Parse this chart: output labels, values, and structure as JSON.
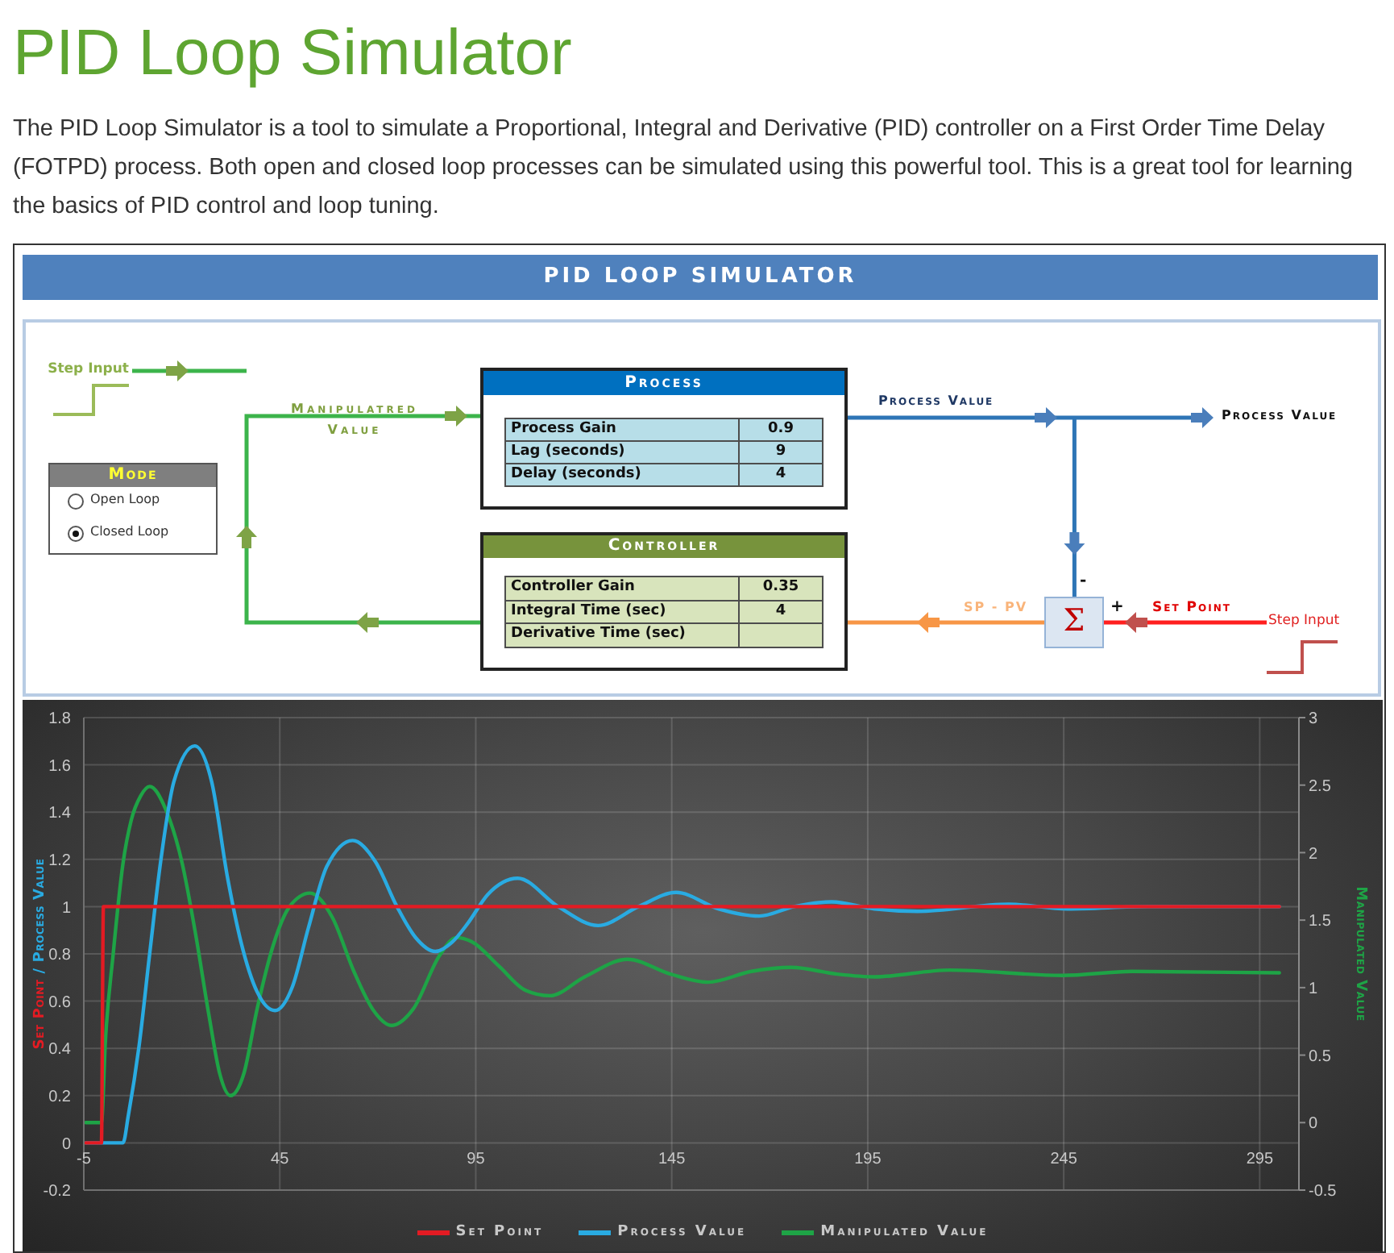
{
  "chart_data": [
    {
      "type": "other",
      "title": "PID Loop Simulator",
      "subtitle": "The PID Loop Simulator is a tool to simulate a Proportional, Integral and Derivative (PID) controller on a First Order Time Delay (FOTPD) process. Both open and closed loop processes can be simulated using this powerful tool. This is a great tool for learning the basics of PID control and loop tuning.",
      "annotations": [
        "PID LOOP SIMULATOR",
        "Step Input",
        "Manipulatred Value",
        "Mode",
        "Open Loop",
        "Closed Loop",
        "Process",
        "Process Gain",
        "0.9",
        "Lag (seconds)",
        "9",
        "Delay (seconds)",
        "4",
        "Controller",
        "Controller Gain",
        "0.35",
        "Integral Time (sec)",
        "4",
        "Derivative Time (sec)",
        "Process Value",
        "Process Value",
        "SP - PV",
        "Σ",
        "-",
        "+",
        "Set Point",
        "Step Input"
      ]
    },
    {
      "type": "line",
      "xlim": [
        -5,
        305
      ],
      "xticks": [
        -5,
        45,
        95,
        145,
        195,
        245,
        295
      ],
      "ylim": [
        -0.2,
        1.8
      ],
      "yticks": [
        -0.2,
        0,
        0.2,
        0.4,
        0.6,
        0.8,
        1,
        1.2,
        1.4,
        1.6,
        1.8
      ],
      "y2lim": [
        -0.5,
        3
      ],
      "y2ticks": [
        -0.5,
        0,
        0.5,
        1,
        1.5,
        2,
        2.5,
        3
      ],
      "ylabel": "Set Point / Process Value",
      "y2label": "Manipulated Value",
      "grid": true,
      "legend": "bottom",
      "series": [
        {
          "name": "Set Point",
          "color": "#e31b23",
          "x": [
            -4.5,
            -0.5,
            0,
            300
          ],
          "values": [
            0,
            0,
            1,
            1
          ]
        },
        {
          "name": "Process Value",
          "color": "#29abe2",
          "x": [
            -4.5,
            5,
            6.4,
            9.1,
            11.8,
            14.6,
            18,
            23.3,
            27.6,
            31.7,
            35.1,
            39.2,
            43.8,
            48.2,
            52.3,
            57,
            63.6,
            69.4,
            74.9,
            79.6,
            84.7,
            89,
            93,
            98,
            105.7,
            116,
            126.2,
            136.5,
            146.1,
            157,
            167.3,
            176.2,
            185.8,
            196.7,
            207.7,
            231,
            246,
            266.6,
            300
          ],
          "values": [
            0,
            0,
            0.12,
            0.41,
            0.8,
            1.19,
            1.53,
            1.68,
            1.53,
            1.12,
            0.85,
            0.64,
            0.56,
            0.66,
            0.91,
            1.17,
            1.28,
            1.19,
            1.0,
            0.87,
            0.81,
            0.85,
            0.93,
            1.05,
            1.12,
            1.0,
            0.92,
            1.0,
            1.06,
            0.99,
            0.96,
            1.0,
            1.02,
            0.99,
            0.98,
            1.01,
            0.99,
            1.0,
            1.0
          ]
        },
        {
          "name": "Manipulated Value",
          "color": "#1ea446",
          "axis": "y2",
          "x": [
            -4.5,
            -0.5,
            0.5,
            2.5,
            5,
            7.1,
            9.5,
            11.8,
            15.9,
            20.1,
            23.5,
            26.9,
            29.7,
            32.4,
            35.8,
            39.2,
            43.4,
            47.5,
            52.7,
            58.4,
            63.9,
            68.7,
            73.5,
            79,
            85.8,
            90,
            94,
            100.9,
            107.7,
            113.9,
            122.8,
            133.7,
            144.7,
            154.3,
            165.3,
            175.5,
            187.2,
            196.7,
            215.9,
            244.7,
            262.5,
            300
          ],
          "values": [
            0,
            0,
            0.6,
            1.25,
            1.92,
            2.24,
            2.42,
            2.49,
            2.32,
            1.92,
            1.4,
            0.8,
            0.36,
            0.2,
            0.36,
            0.84,
            1.32,
            1.6,
            1.7,
            1.52,
            1.12,
            0.84,
            0.72,
            0.84,
            1.24,
            1.37,
            1.34,
            1.16,
            0.98,
            0.94,
            1.08,
            1.21,
            1.1,
            1.04,
            1.12,
            1.15,
            1.1,
            1.08,
            1.13,
            1.09,
            1.12,
            1.11
          ]
        }
      ]
    }
  ]
}
